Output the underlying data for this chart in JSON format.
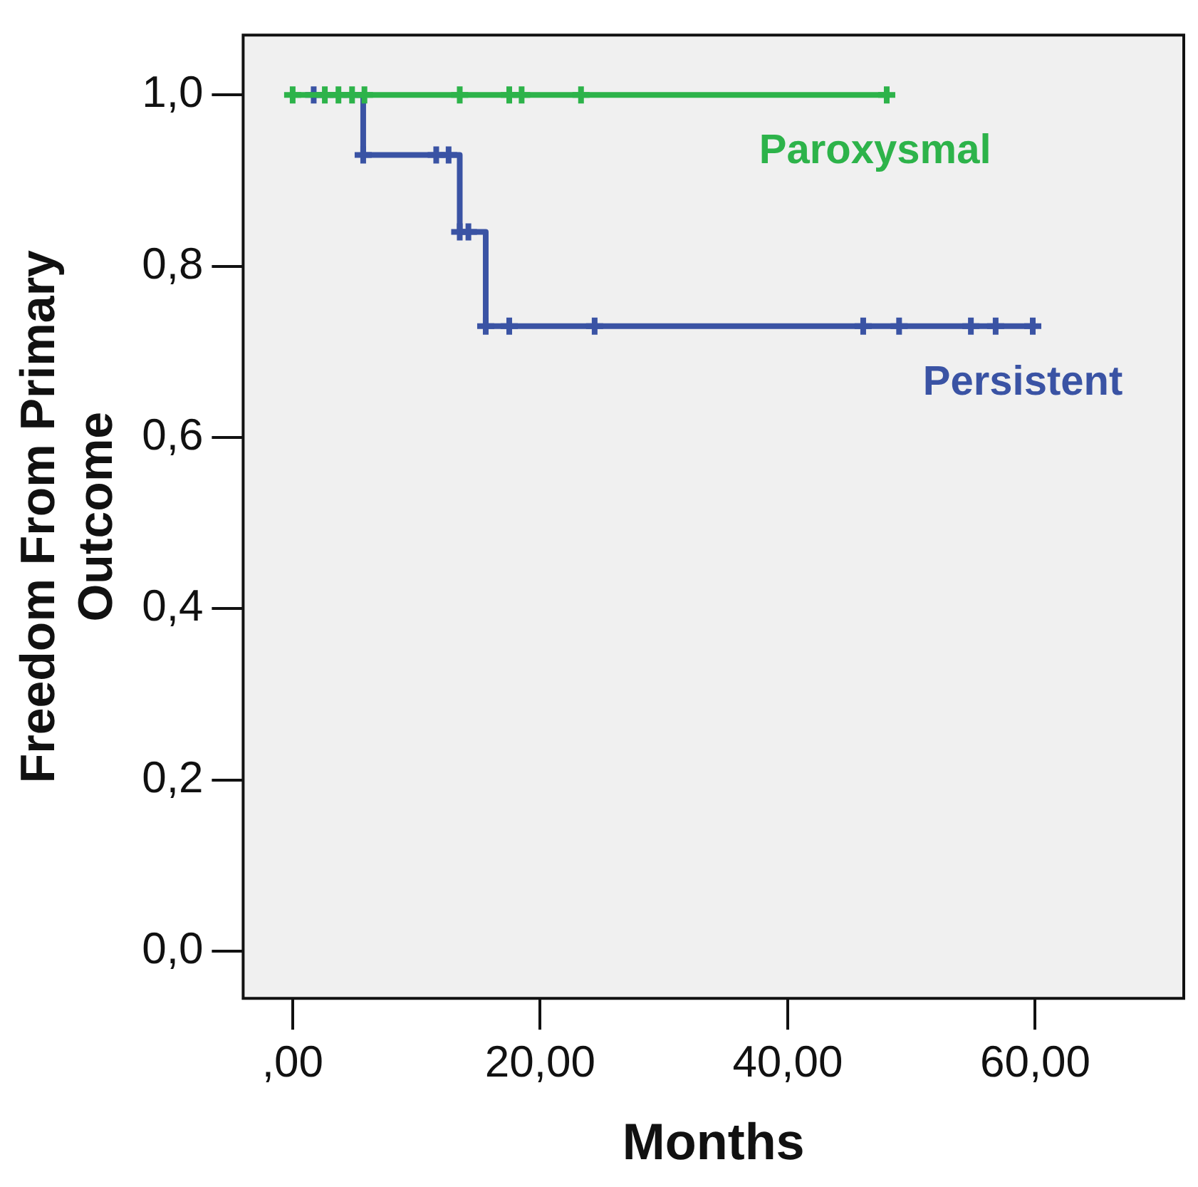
{
  "chart_data": {
    "type": "step",
    "xlabel": "Months",
    "ylabel": "Freedom From Primary Outcome",
    "xlim": [
      -4,
      72
    ],
    "xticks": [
      {
        "value": 0,
        "label": ",00"
      },
      {
        "value": 20,
        "label": "20,00"
      },
      {
        "value": 40,
        "label": "40,00"
      },
      {
        "value": 60,
        "label": "60,00"
      }
    ],
    "ylim": [
      -0.055,
      1.07
    ],
    "yticks": [
      {
        "value": 0,
        "label": "0,0"
      },
      {
        "value": 0.2,
        "label": "0,2"
      },
      {
        "value": 0.4,
        "label": "0,4"
      },
      {
        "value": 0.6,
        "label": "0,6"
      },
      {
        "value": 0.8,
        "label": "0,8"
      },
      {
        "value": 1,
        "label": "1,0"
      }
    ],
    "grid": false,
    "legend": false,
    "marker": "cross",
    "line_style": "solid",
    "series": [
      {
        "name": "Paroxysmal",
        "color": "#2db34a",
        "x": [
          0,
          2.6,
          3.7,
          4.8,
          5.8,
          13.5,
          17.5,
          18.5,
          23.3,
          48
        ],
        "values": [
          1,
          1,
          1,
          1,
          1,
          1,
          1,
          1,
          1,
          1
        ]
      },
      {
        "name": "Persistent",
        "color": "#3a53a4",
        "x": [
          1.7,
          5.7,
          11.6,
          12.6,
          13.5,
          14.2,
          15.6,
          17.5,
          24.4,
          46.1,
          49,
          54.8,
          56.8,
          59.8
        ],
        "values": [
          1,
          0.93,
          0.93,
          0.93,
          0.84,
          0.84,
          0.73,
          0.73,
          0.73,
          0.73,
          0.73,
          0.73,
          0.73,
          0.73
        ]
      }
    ]
  }
}
